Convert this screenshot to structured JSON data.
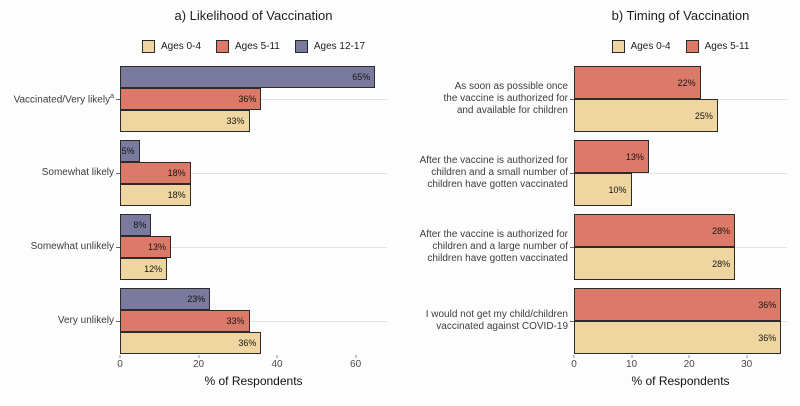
{
  "figure": {
    "background": "#fdfdfd",
    "value_suffix": "%",
    "colors": {
      "ages_0_4": "#EFD6A0",
      "ages_5_11": "#DB7A68",
      "ages_12_17": "#7A7A9E",
      "bar_border": "#2b2b2b",
      "gridline": "#e2e2e2",
      "text": "#1d1d1d"
    }
  },
  "chart_data": [
    {
      "type": "bar",
      "orientation": "horizontal",
      "title": "a) Likelihood of Vaccination",
      "xlabel": "% of Respondents",
      "xlim": [
        0,
        68
      ],
      "xticks": [
        0,
        20,
        40,
        60
      ],
      "grid": "horizontal-per-category",
      "legend_position": "top-center",
      "categories": [
        {
          "lines": [
            "Vaccinated/Very likely"
          ],
          "superscript": "a"
        },
        {
          "lines": [
            "Somewhat likely"
          ]
        },
        {
          "lines": [
            "Somewhat unlikely"
          ]
        },
        {
          "lines": [
            "Very unlikely"
          ]
        }
      ],
      "series": [
        {
          "name": "Ages 0-4",
          "color": "#EFD6A0",
          "values": [
            33,
            18,
            12,
            36
          ]
        },
        {
          "name": "Ages 5-11",
          "color": "#DB7A68",
          "values": [
            36,
            18,
            13,
            33
          ]
        },
        {
          "name": "Ages 12-17",
          "color": "#7A7A9E",
          "values": [
            65,
            5,
            8,
            23
          ]
        }
      ]
    },
    {
      "type": "bar",
      "orientation": "horizontal",
      "title": "b) Timing of Vaccination",
      "xlabel": "% of Respondents",
      "xlim": [
        0,
        37
      ],
      "xticks": [
        0,
        10,
        20,
        30
      ],
      "grid": "horizontal-per-category",
      "legend_position": "top-center",
      "categories": [
        {
          "lines": [
            "As soon as possible once",
            "the vaccine is authorized for",
            "and available for children"
          ]
        },
        {
          "lines": [
            "After the vaccine is authorized for",
            "children and a small number of",
            "children have gotten vaccinated"
          ]
        },
        {
          "lines": [
            "After the vaccine is authorized for",
            "children and a large number of",
            "children have gotten vaccinated"
          ]
        },
        {
          "lines": [
            "I would not get my child/children",
            "vaccinated against COVID-19"
          ]
        }
      ],
      "series": [
        {
          "name": "Ages 0-4",
          "color": "#EFD6A0",
          "values": [
            25,
            10,
            28,
            36
          ]
        },
        {
          "name": "Ages 5-11",
          "color": "#DB7A68",
          "values": [
            22,
            13,
            28,
            36
          ]
        }
      ]
    }
  ]
}
